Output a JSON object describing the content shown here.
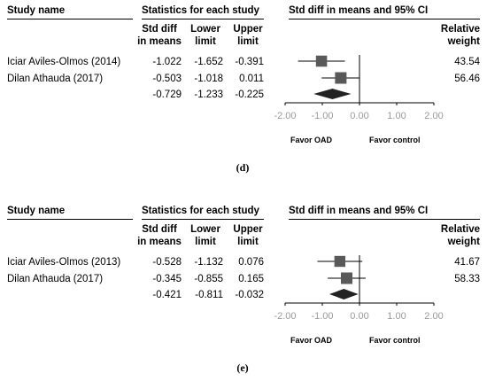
{
  "headers": {
    "study_name": "Study name",
    "stats_title": "Statistics for each study",
    "ci_title": "Std diff in means and 95% CI",
    "col_std_1": "Std diff",
    "col_std_2": "in means",
    "col_lower_1": "Lower",
    "col_lower_2": "limit",
    "col_upper_1": "Upper",
    "col_upper_2": "limit",
    "col_weight_1": "Relative",
    "col_weight_2": "weight"
  },
  "chart_data": [
    {
      "type": "forest",
      "caption": "(d)",
      "x_ticks": [
        "-2.00",
        "-1.00",
        "0.00",
        "1.00",
        "2.00"
      ],
      "xlim": [
        -2,
        2
      ],
      "favor_left": "Favor OAD",
      "favor_right": "Favor control",
      "studies": [
        {
          "name": "Iciar Aviles-Olmos (2014)",
          "smd": "-1.022",
          "lower": "-1.652",
          "upper": "-0.391",
          "weight": "43.54"
        },
        {
          "name": "Dilan Athauda (2017)",
          "smd": "-0.503",
          "lower": "-1.018",
          "upper": "0.011",
          "weight": "56.46"
        }
      ],
      "summary": {
        "smd": "-0.729",
        "lower": "-1.233",
        "upper": "-0.225"
      }
    },
    {
      "type": "forest",
      "caption": "(e)",
      "x_ticks": [
        "-2.00",
        "-1.00",
        "0.00",
        "1.00",
        "2.00"
      ],
      "xlim": [
        -2,
        2
      ],
      "favor_left": "Favor OAD",
      "favor_right": "Favor control",
      "studies": [
        {
          "name": "Iciar Aviles-Olmos (2013)",
          "smd": "-0.528",
          "lower": "-1.132",
          "upper": "0.076",
          "weight": "41.67"
        },
        {
          "name": "Dilan Athauda (2017)",
          "smd": "-0.345",
          "lower": "-0.855",
          "upper": "0.165",
          "weight": "58.33"
        }
      ],
      "summary": {
        "smd": "-0.421",
        "lower": "-0.811",
        "upper": "-0.032"
      }
    }
  ]
}
